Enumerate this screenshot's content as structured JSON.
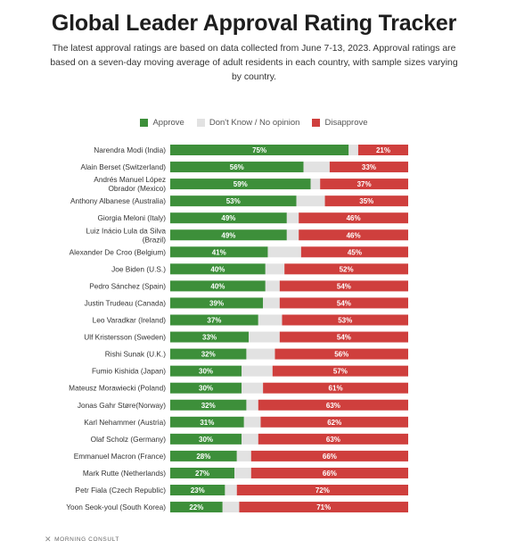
{
  "title": "Global Leader Approval Rating Tracker",
  "subtitle": "The latest approval ratings are based on data collected from June 7-13, 2023. Approval ratings are based on a seven-day moving average of adult residents in each country, with sample sizes varying by country.",
  "source": "MORNING CONSULT",
  "colors": {
    "approve": "#3d8f3a",
    "neutral": "#e2e2e2",
    "disapprove": "#cf3f3d"
  },
  "chart_data": {
    "type": "bar",
    "orientation": "horizontal",
    "stacked": true,
    "title": "Global Leader Approval Rating Tracker",
    "xlim": [
      0,
      100
    ],
    "legend_position": "top",
    "grid": false,
    "categories": [
      "Narendra Modi (India)",
      "Alain Berset (Switzerland)",
      "Andrés Manuel López Obrador (Mexico)",
      "Anthony Albanese (Australia)",
      "Giorgia Meloni (Italy)",
      "Luiz Inácio Lula da Silva (Brazil)",
      "Alexander De Croo (Belgium)",
      "Joe Biden (U.S.)",
      "Pedro Sánchez (Spain)",
      "Justin Trudeau (Canada)",
      "Leo Varadkar (Ireland)",
      "Ulf Kristersson (Sweden)",
      "Rishi Sunak (U.K.)",
      "Fumio Kishida (Japan)",
      "Mateusz Morawiecki (Poland)",
      "Jonas Gahr Støre(Norway)",
      "Karl Nehammer (Austria)",
      "Olaf Scholz (Germany)",
      "Emmanuel Macron (France)",
      "Mark Rutte (Netherlands)",
      "Petr Fiala (Czech Republic)",
      "Yoon Seok-youl (South Korea)"
    ],
    "series": [
      {
        "name": "Approve",
        "values": [
          75,
          56,
          59,
          53,
          49,
          49,
          41,
          40,
          40,
          39,
          37,
          33,
          32,
          30,
          30,
          32,
          31,
          30,
          28,
          27,
          23,
          22
        ]
      },
      {
        "name": "Don't Know / No opinion",
        "values": [
          4,
          11,
          4,
          12,
          5,
          5,
          14,
          8,
          6,
          7,
          10,
          13,
          12,
          13,
          9,
          5,
          7,
          7,
          6,
          7,
          5,
          7
        ]
      },
      {
        "name": "Disapprove",
        "values": [
          21,
          33,
          37,
          35,
          46,
          46,
          45,
          52,
          54,
          54,
          53,
          54,
          56,
          57,
          61,
          63,
          62,
          63,
          66,
          66,
          72,
          71
        ]
      }
    ]
  }
}
